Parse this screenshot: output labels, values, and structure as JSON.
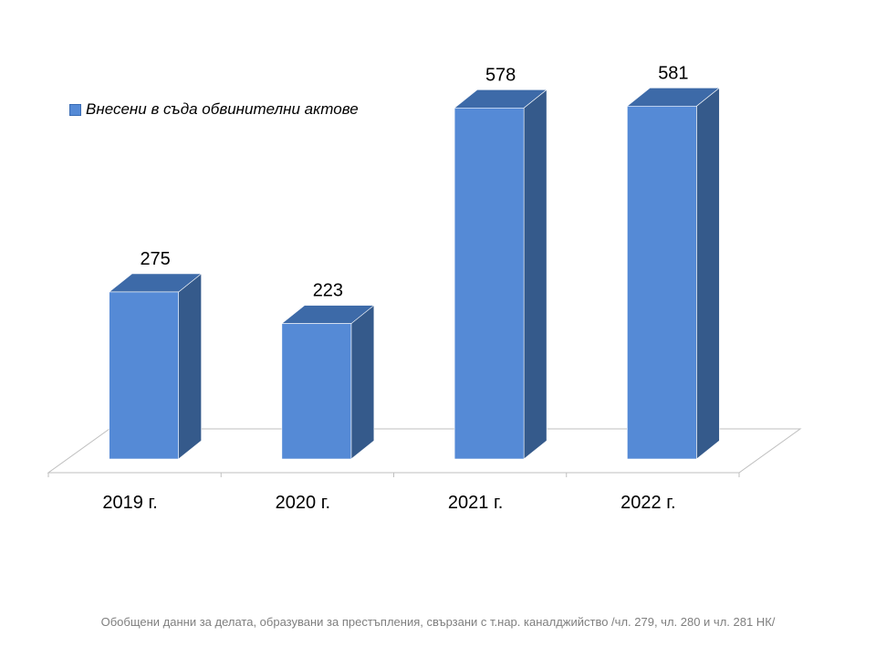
{
  "chart_data": {
    "type": "bar",
    "categories": [
      "2019 г.",
      "2020 г.",
      "2021 г.",
      "2022 г."
    ],
    "series": [
      {
        "name": "Внесени в съда обвинителни актове",
        "values": [
          275,
          223,
          578,
          581
        ]
      }
    ],
    "data_labels": [
      "275",
      "223",
      "578",
      "581"
    ],
    "legend_position": "top-left",
    "grid": false,
    "style": "3d-column",
    "colors": {
      "front": "#558ad6",
      "side": "#355a8b",
      "top": "#3d6aa8"
    }
  },
  "footer_note": "Обобщени данни за делата, образувани за престъпления, свързани с т.нар. каналджийство /чл. 279, чл. 280 и чл. 281 НК/"
}
